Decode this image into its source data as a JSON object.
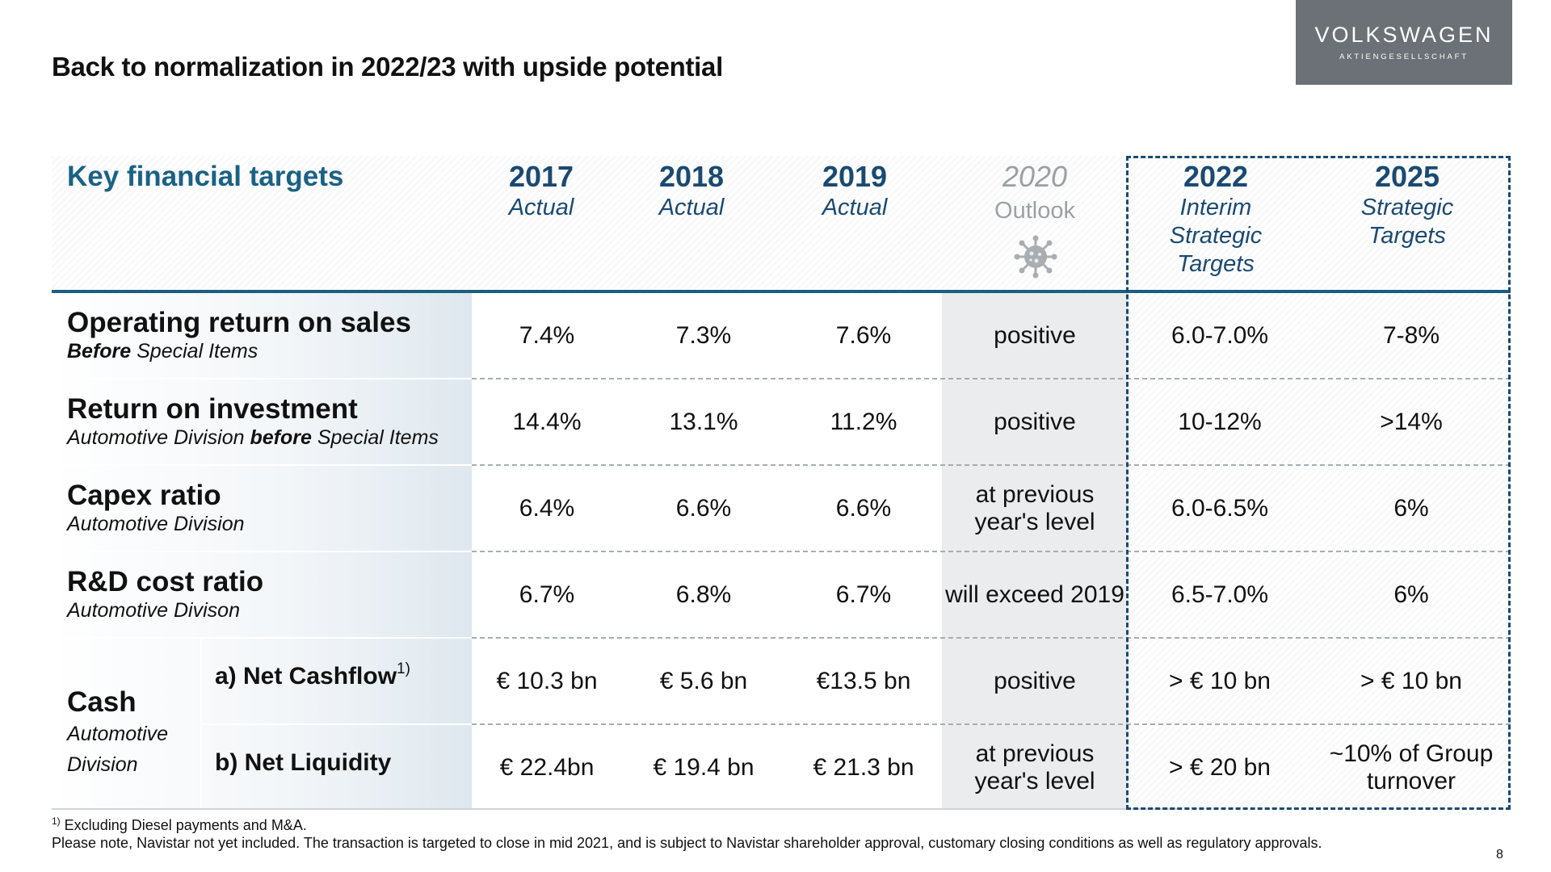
{
  "title": "Back to normalization in 2022/23 with upside potential",
  "logo": {
    "line1": "VOLKSWAGEN",
    "line2": "AKTIENGESELLSCHAFT"
  },
  "table": {
    "header_title": "Key financial targets",
    "columns": [
      {
        "year": "2017",
        "sub": "Actual"
      },
      {
        "year": "2018",
        "sub": "Actual"
      },
      {
        "year": "2019",
        "sub": "Actual"
      },
      {
        "year": "2020",
        "sub": "Outlook"
      },
      {
        "year": "2022",
        "sub": "Interim Strategic Targets"
      },
      {
        "year": "2025",
        "sub": "Strategic Targets"
      }
    ],
    "rows": [
      {
        "label": "Operating return on sales",
        "sub_bold": "Before",
        "sub_rest": " Special Items",
        "values": [
          "7.4%",
          "7.3%",
          "7.6%",
          "positive",
          "6.0-7.0%",
          "7-8%"
        ]
      },
      {
        "label": "Return on investment",
        "sub_pre": "Automotive Division ",
        "sub_bold": "before",
        "sub_rest": " Special Items",
        "values": [
          "14.4%",
          "13.1%",
          "11.2%",
          "positive",
          "10-12%",
          ">14%"
        ]
      },
      {
        "label": "Capex ratio",
        "sub": "Automotive Division",
        "values": [
          "6.4%",
          "6.6%",
          "6.6%",
          "at previous year's level",
          "6.0-6.5%",
          "6%"
        ]
      },
      {
        "label": "R&D cost ratio",
        "sub": "Automotive Divison",
        "values": [
          "6.7%",
          "6.8%",
          "6.7%",
          "will exceed 2019",
          "6.5-7.0%",
          "6%"
        ]
      }
    ],
    "cash": {
      "label": "Cash",
      "sub": "Automotive Division",
      "a_label": "a) Net Cashflow",
      "a_sup": "1)",
      "a_values": [
        "€ 10.3 bn",
        "€ 5.6 bn",
        "€13.5 bn",
        "positive",
        "> € 10 bn",
        "> € 10 bn"
      ],
      "b_label": "b) Net Liquidity",
      "b_values": [
        "€ 22.4bn",
        "€ 19.4 bn",
        "€ 21.3 bn",
        "at previous year's level",
        "> € 20 bn",
        "~10% of Group turnover"
      ]
    }
  },
  "footnote": {
    "sup": "1)",
    "line1": " Excluding Diesel payments and M&A.",
    "line2": "Please note,  Navistar not yet included. The transaction is targeted to close in mid 2021, and is subject to Navistar shareholder approval, customary closing conditions as well as regulatory approvals."
  },
  "page_number": "8",
  "icons": [
    "virus-icon"
  ],
  "colors": {
    "header_blue": "#1a6284",
    "dark_blue": "#1a4a72",
    "logo_grey": "#6b7176",
    "outlook_grey": "#9aa0a6"
  }
}
